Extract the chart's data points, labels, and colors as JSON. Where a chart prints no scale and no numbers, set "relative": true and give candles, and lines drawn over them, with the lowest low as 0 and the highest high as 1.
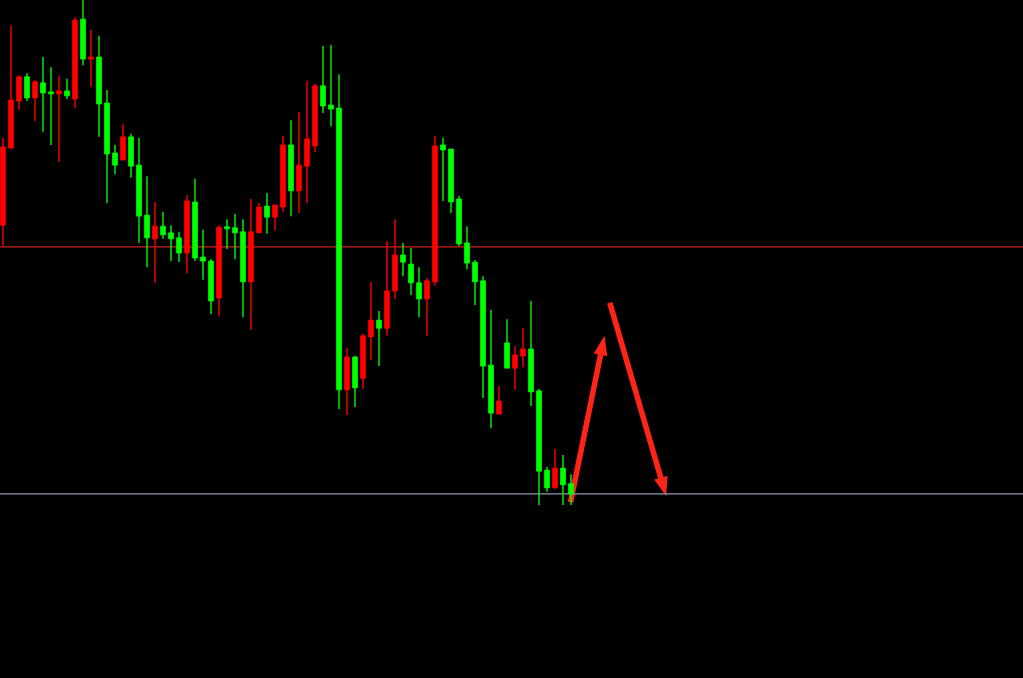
{
  "chart_data": {
    "type": "candlestick",
    "relative": true,
    "categories": [
      null,
      null,
      null,
      null,
      null,
      null,
      null,
      null,
      null,
      null,
      null,
      null,
      null,
      null,
      null,
      null,
      null,
      null,
      null,
      null,
      null,
      null,
      null,
      null,
      null,
      null,
      null,
      null,
      null,
      null,
      null,
      null,
      null,
      null,
      null,
      null,
      null,
      null,
      null,
      null,
      null,
      null,
      null,
      null,
      null,
      null,
      null,
      null,
      null,
      null,
      null,
      null,
      null,
      null,
      null,
      null,
      null,
      null,
      null,
      null,
      null,
      null,
      null,
      null,
      null,
      null,
      null,
      null,
      null,
      null,
      null,
      null
    ],
    "ohlc": [
      [
        0.554,
        0.727,
        0.513,
        0.709
      ],
      [
        0.707,
        0.95,
        0.705,
        0.802
      ],
      [
        0.8,
        0.851,
        0.782,
        0.848
      ],
      [
        0.848,
        0.855,
        0.8,
        0.806
      ],
      [
        0.806,
        0.842,
        0.76,
        0.838
      ],
      [
        0.836,
        0.887,
        0.739,
        0.816
      ],
      [
        0.818,
        0.867,
        0.713,
        0.814
      ],
      [
        0.814,
        0.85,
        0.679,
        0.82
      ],
      [
        0.82,
        0.844,
        0.804,
        0.81
      ],
      [
        0.804,
        0.966,
        0.786,
        0.96
      ],
      [
        0.962,
        1.0,
        0.871,
        0.883
      ],
      [
        0.883,
        0.941,
        0.828,
        0.887
      ],
      [
        0.887,
        0.929,
        0.729,
        0.794
      ],
      [
        0.796,
        0.822,
        0.598,
        0.695
      ],
      [
        0.697,
        0.713,
        0.655,
        0.673
      ],
      [
        0.683,
        0.754,
        0.683,
        0.729
      ],
      [
        0.729,
        0.735,
        0.648,
        0.671
      ],
      [
        0.673,
        0.727,
        0.519,
        0.572
      ],
      [
        0.574,
        0.651,
        0.471,
        0.529
      ],
      [
        0.527,
        0.6,
        0.44,
        0.552
      ],
      [
        0.552,
        0.58,
        0.527,
        0.535
      ],
      [
        0.539,
        0.554,
        0.483,
        0.527
      ],
      [
        0.529,
        0.541,
        0.481,
        0.499
      ],
      [
        0.499,
        0.614,
        0.459,
        0.602
      ],
      [
        0.6,
        0.646,
        0.483,
        0.489
      ],
      [
        0.491,
        0.545,
        0.446,
        0.483
      ],
      [
        0.483,
        0.487,
        0.378,
        0.404
      ],
      [
        0.41,
        0.554,
        0.374,
        0.55
      ],
      [
        0.55,
        0.566,
        0.507,
        0.547
      ],
      [
        0.549,
        0.576,
        0.487,
        0.539
      ],
      [
        0.541,
        0.566,
        0.372,
        0.442
      ],
      [
        0.442,
        0.606,
        0.347,
        0.541
      ],
      [
        0.539,
        0.598,
        0.539,
        0.59
      ],
      [
        0.592,
        0.618,
        0.537,
        0.57
      ],
      [
        0.57,
        0.594,
        0.543,
        0.594
      ],
      [
        0.59,
        0.731,
        0.58,
        0.713
      ],
      [
        0.713,
        0.762,
        0.572,
        0.622
      ],
      [
        0.622,
        0.778,
        0.578,
        0.673
      ],
      [
        0.671,
        0.84,
        0.598,
        0.725
      ],
      [
        0.711,
        0.834,
        0.699,
        0.83
      ],
      [
        0.83,
        0.909,
        0.776,
        0.79
      ],
      [
        0.792,
        0.911,
        0.75,
        0.784
      ],
      [
        0.786,
        0.853,
        0.19,
        0.228
      ],
      [
        0.228,
        0.311,
        0.178,
        0.293
      ],
      [
        0.293,
        0.295,
        0.194,
        0.232
      ],
      [
        0.251,
        0.339,
        0.23,
        0.335
      ],
      [
        0.333,
        0.442,
        0.287,
        0.366
      ],
      [
        0.366,
        0.384,
        0.275,
        0.35
      ],
      [
        0.35,
        0.523,
        0.335,
        0.424
      ],
      [
        0.424,
        0.566,
        0.408,
        0.495
      ],
      [
        0.495,
        0.519,
        0.453,
        0.481
      ],
      [
        0.477,
        0.509,
        0.416,
        0.44
      ],
      [
        0.44,
        0.471,
        0.372,
        0.408
      ],
      [
        0.408,
        0.45,
        0.335,
        0.444
      ],
      [
        0.442,
        0.731,
        0.434,
        0.711
      ],
      [
        0.713,
        0.727,
        0.602,
        0.703
      ],
      [
        0.705,
        0.705,
        0.578,
        0.6
      ],
      [
        0.606,
        0.612,
        0.513,
        0.517
      ],
      [
        0.519,
        0.552,
        0.467,
        0.479
      ],
      [
        0.481,
        0.485,
        0.396,
        0.442
      ],
      [
        0.444,
        0.453,
        0.212,
        0.275
      ],
      [
        0.277,
        0.386,
        0.152,
        0.182
      ],
      [
        0.18,
        0.236,
        0.18,
        0.206
      ],
      [
        0.321,
        0.368,
        0.271,
        0.271
      ],
      [
        0.271,
        0.315,
        0.228,
        0.297
      ],
      [
        0.295,
        0.35,
        0.273,
        0.309
      ],
      [
        0.309,
        0.404,
        0.196,
        0.224
      ],
      [
        0.226,
        0.23,
        0.0,
        0.067
      ],
      [
        0.069,
        0.075,
        0.026,
        0.034
      ],
      [
        0.034,
        0.111,
        0.032,
        0.073
      ],
      [
        0.073,
        0.099,
        0.0,
        0.04
      ],
      [
        0.042,
        0.061,
        0.0,
        0.022
      ]
    ],
    "colors": [
      "#ff0000",
      "#ff0000",
      "#ff0000",
      "#00ff00",
      "#ff0000",
      "#00ff00",
      "#00ff00",
      "#ff0000",
      "#00ff00",
      "#ff0000",
      "#00ff00",
      "#ff0000",
      "#00ff00",
      "#00ff00",
      "#00ff00",
      "#ff0000",
      "#00ff00",
      "#00ff00",
      "#00ff00",
      "#ff0000",
      "#00ff00",
      "#00ff00",
      "#00ff00",
      "#ff0000",
      "#00ff00",
      "#00ff00",
      "#00ff00",
      "#ff0000",
      "#00ff00",
      "#00ff00",
      "#00ff00",
      "#ff0000",
      "#ff0000",
      "#00ff00",
      "#ff0000",
      "#ff0000",
      "#00ff00",
      "#ff0000",
      "#ff0000",
      "#ff0000",
      "#00ff00",
      "#00ff00",
      "#00ff00",
      "#ff0000",
      "#00ff00",
      "#ff0000",
      "#ff0000",
      "#00ff00",
      "#ff0000",
      "#ff0000",
      "#00ff00",
      "#00ff00",
      "#00ff00",
      "#ff0000",
      "#ff0000",
      "#00ff00",
      "#00ff00",
      "#00ff00",
      "#00ff00",
      "#00ff00",
      "#00ff00",
      "#00ff00",
      "#ff0000",
      "#00ff00",
      "#ff0000",
      "#ff0000",
      "#00ff00",
      "#00ff00",
      "#00ff00",
      "#ff0000",
      "#00ff00",
      "#00ff00"
    ],
    "ref_lines": [
      {
        "axis": "y",
        "value": 0.511,
        "color": "#d02020",
        "line_style": "solid"
      },
      {
        "axis": "y",
        "value": 0.022,
        "color": "#8a9ab0",
        "line_style": "solid"
      }
    ]
  }
}
